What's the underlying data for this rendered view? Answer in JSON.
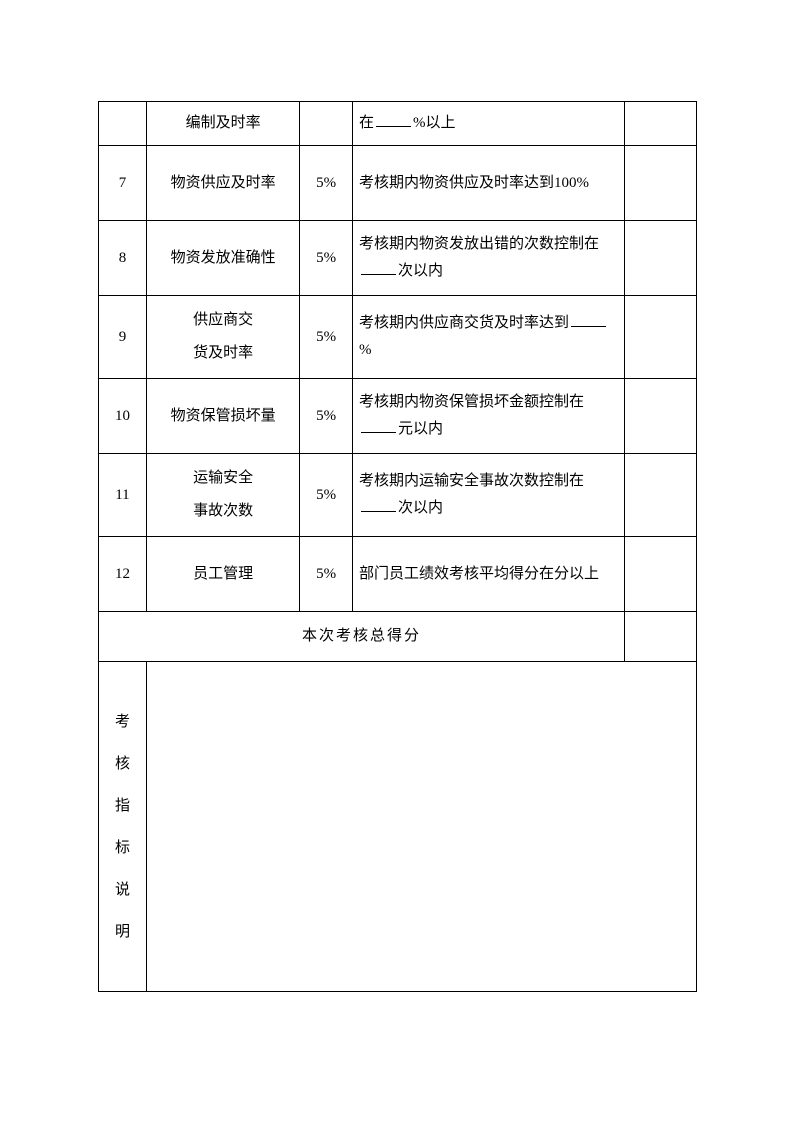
{
  "rows": [
    {
      "num": "",
      "name": "编制及时率",
      "pct": "",
      "desc_prefix": "在",
      "desc_suffix": "%以上",
      "has_blank": true
    },
    {
      "num": "7",
      "name": "物资供应及时率",
      "pct": "5%",
      "desc": "考核期内物资供应及时率达到100%",
      "has_blank": false
    },
    {
      "num": "8",
      "name": "物资发放准确性",
      "pct": "5%",
      "desc_prefix": "考核期内物资发放出错的次数控制在",
      "desc_suffix": "次以内",
      "has_blank": true
    },
    {
      "num": "9",
      "name_line1": "供应商交",
      "name_line2": "货及时率",
      "pct": "5%",
      "desc_prefix": "考核期内供应商交货及时率达到",
      "desc_suffix": "%",
      "has_blank": true,
      "two_line_name": true
    },
    {
      "num": "10",
      "name": "物资保管损坏量",
      "pct": "5%",
      "desc_prefix": "考核期内物资保管损坏金额控制在",
      "desc_suffix": "元以内",
      "has_blank": true
    },
    {
      "num": "11",
      "name_line1": "运输安全",
      "name_line2": "事故次数",
      "pct": "5%",
      "desc_prefix": "考核期内运输安全事故次数控制在",
      "desc_suffix": "次以内",
      "has_blank": true,
      "two_line_name": true
    },
    {
      "num": "12",
      "name": "员工管理",
      "pct": "5%",
      "desc": "部门员工绩效考核平均得分在分以上",
      "has_blank": false
    }
  ],
  "total_label": "本次考核总得分",
  "vertical_label": [
    "考",
    "核",
    "指",
    "标",
    "说",
    "明"
  ]
}
